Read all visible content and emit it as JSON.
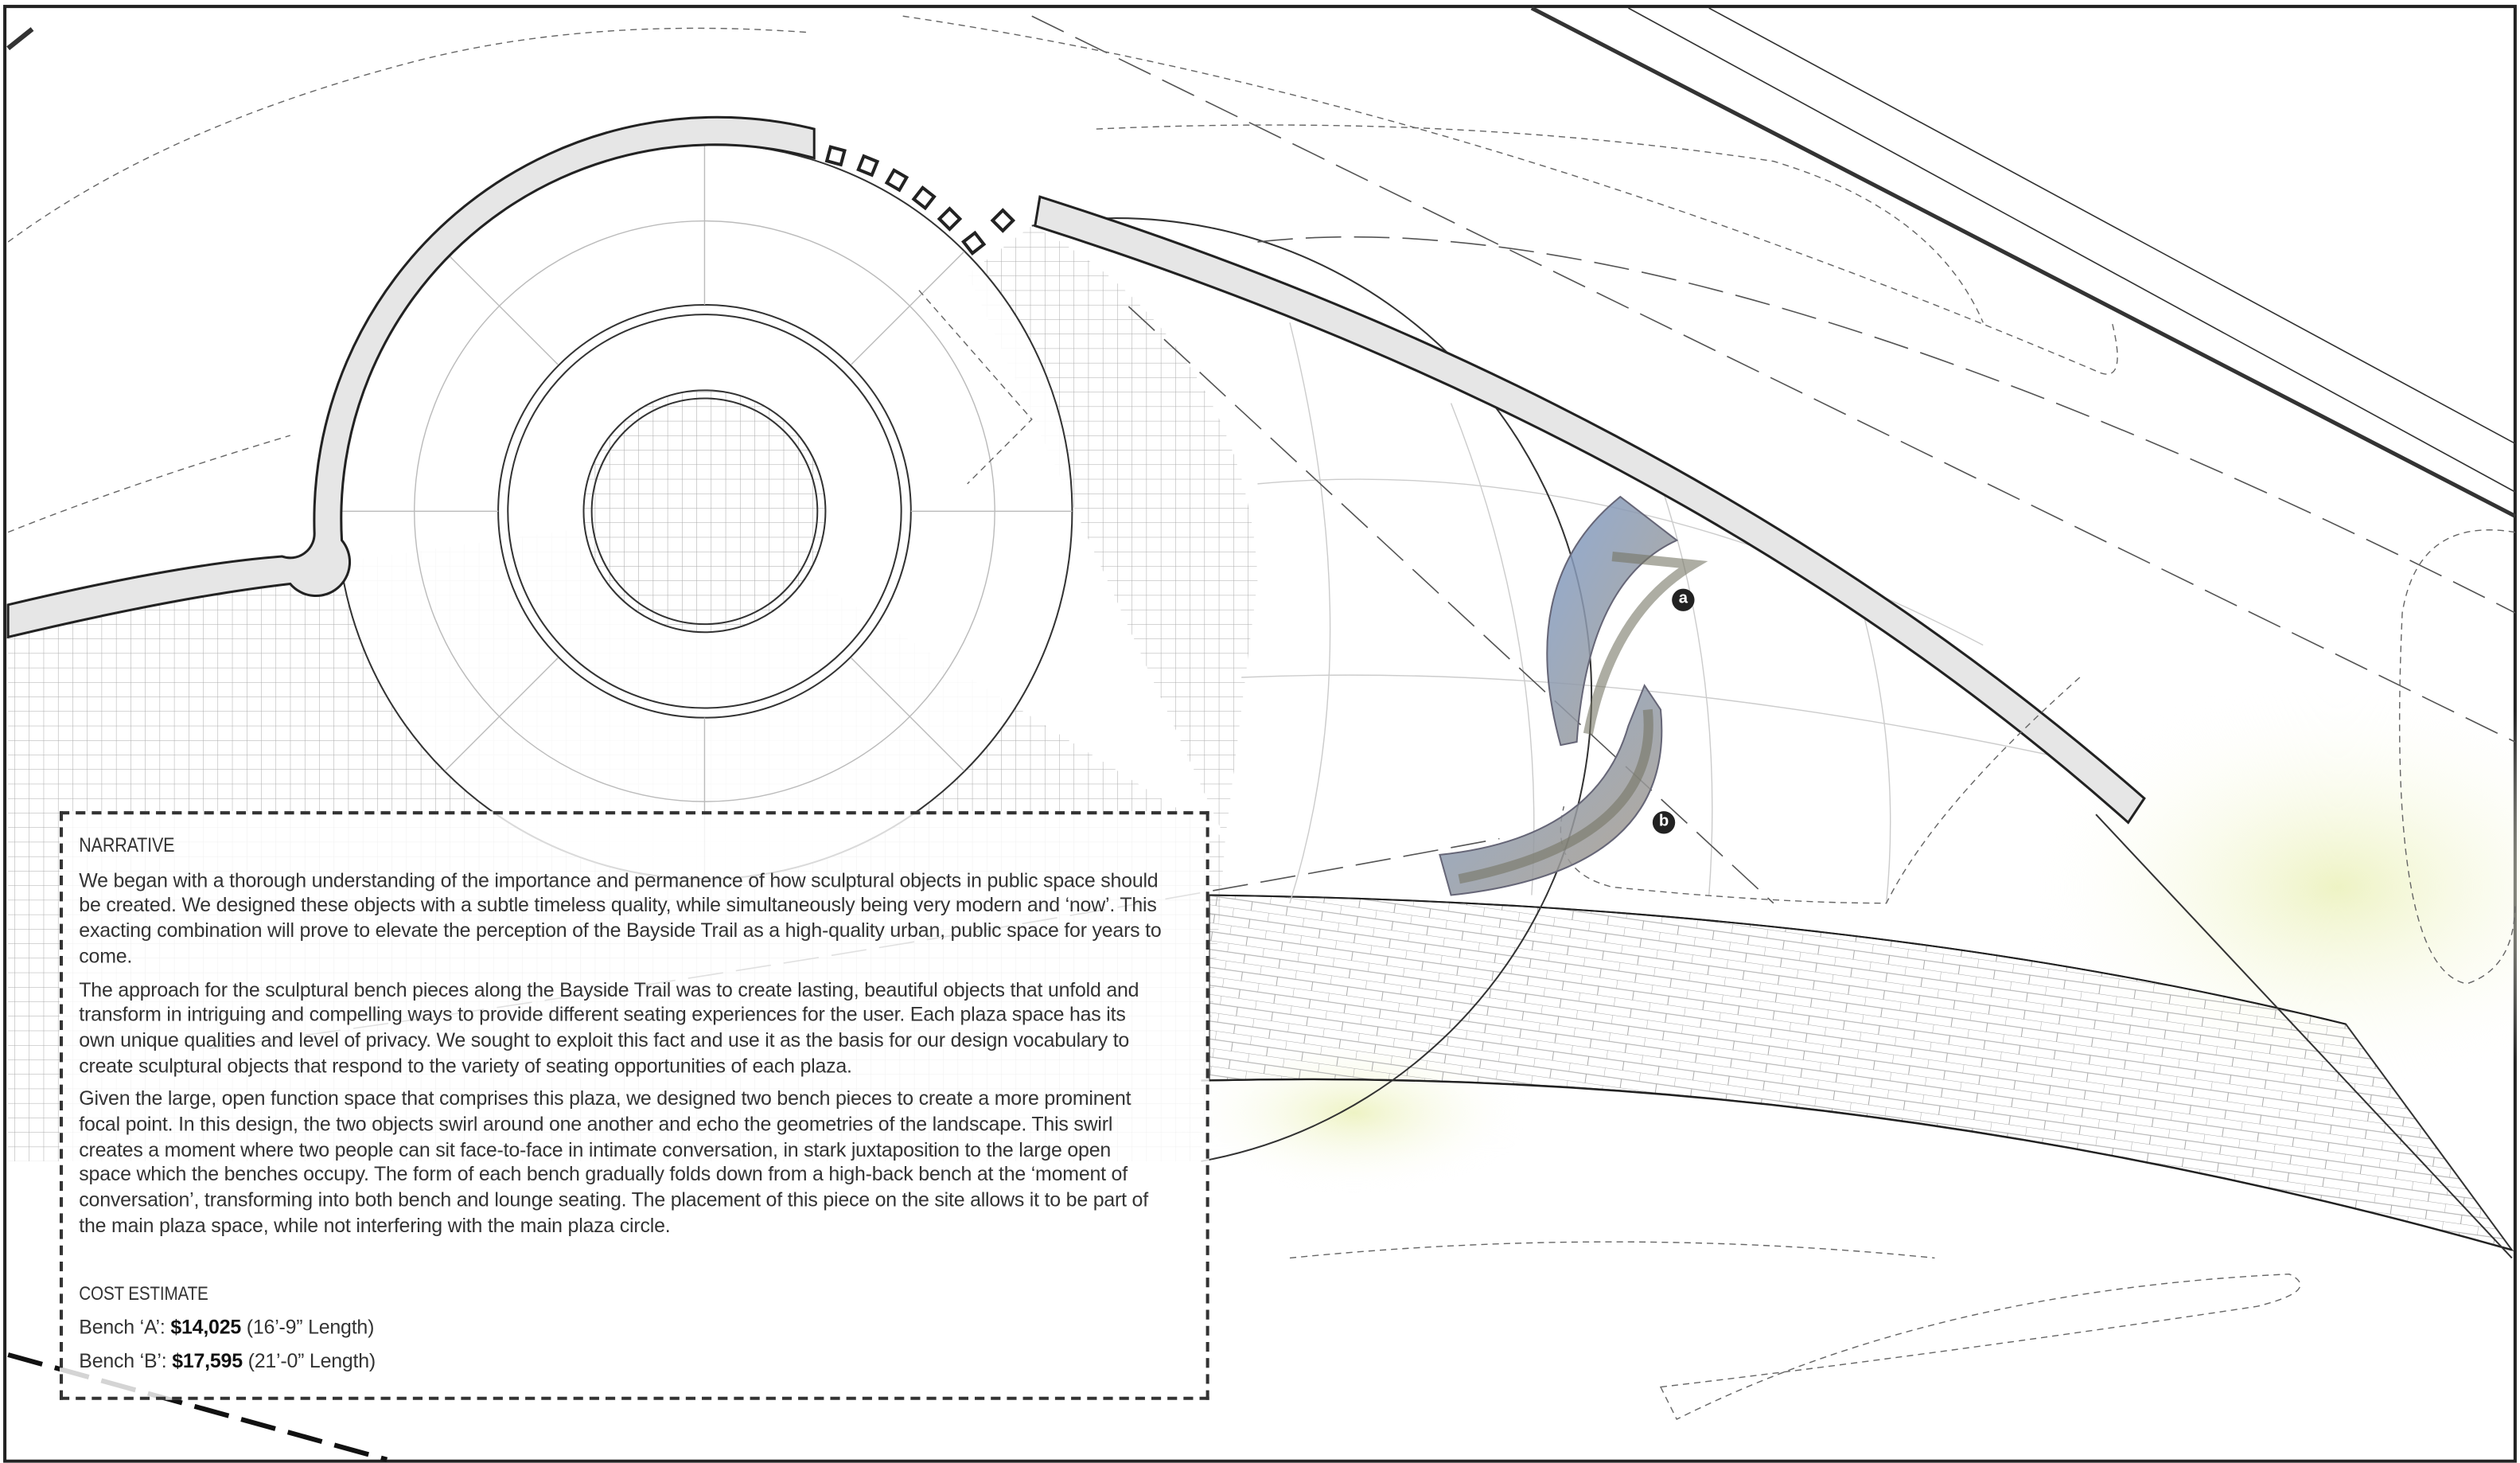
{
  "narrative": {
    "title": "NARRATIVE",
    "paragraphs": [
      "We began with a thorough understanding of the importance and permanence of how sculptural objects in public space should be created.  We designed these objects with a subtle timeless quality, while simultaneously being very modern and ‘now’.  This exacting combination will prove to elevate the perception of the Bayside Trail as a high-quality urban, public space for years to come.",
      "The approach for the sculptural bench pieces along the Bayside Trail was to create lasting, beautiful objects that unfold and transform in intriguing and compelling ways to provide different seating experiences for the user.  Each plaza space has its own unique qualities and level of privacy.  We sought to exploit this fact and use it as the basis for our design vocabulary to create sculptural objects that respond to the variety of seating opportunities of each plaza.",
      "Given the large, open function space that comprises this plaza, we designed two bench pieces to create a more prominent focal point.  In this design, the two objects swirl around one another and echo the geometries of the landscape.  This swirl creates a moment where two people can sit face-to-face in intimate conversation, in stark juxtaposition to the large open space which the benches occupy.  The form of each bench gradually folds down from a high-back bench at the ‘moment of conversation’, transforming into both bench and lounge seating.  The placement of this piece on the site allows it to be part of the main plaza space, while not interfering with the main plaza circle."
    ]
  },
  "cost_estimate": {
    "title": "COST ESTIMATE",
    "items": [
      {
        "label": "Bench ‘A’:",
        "amount": "$14,025",
        "length": "(16’-9” Length)"
      },
      {
        "label": "Bench ‘B’:",
        "amount": "$17,595",
        "length": "(21’-0” Length)"
      }
    ]
  },
  "markers": [
    "a",
    "b"
  ]
}
